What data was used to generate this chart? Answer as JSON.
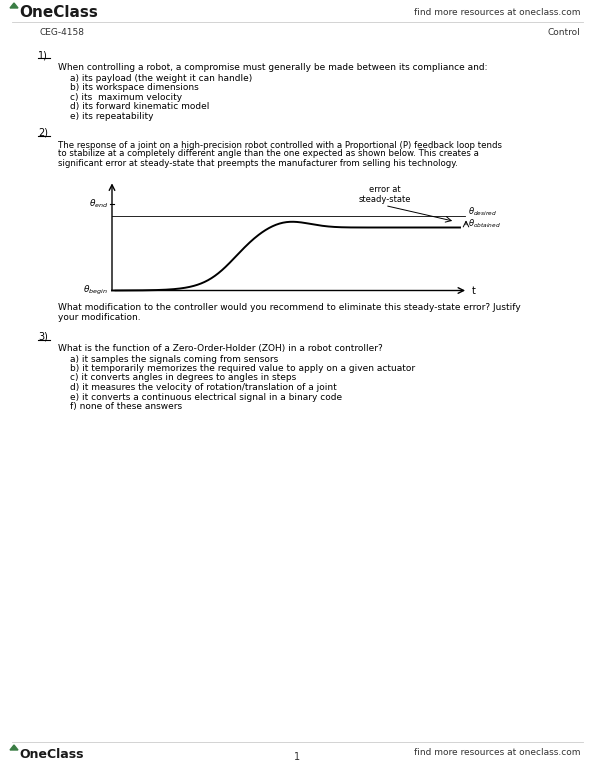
{
  "header_left": "OneClass",
  "header_right": "find more resources at oneclass.com",
  "subheader_left": "CEG-4158",
  "subheader_right": "Control",
  "q1_number": "1)",
  "q1_text": "When controlling a robot, a compromise must generally be made between its compliance and:",
  "q1_options": [
    "a) its payload (the weight it can handle)",
    "b) its workspace dimensions",
    "c) its  maximum velocity",
    "d) its forward kinematic model",
    "e) its repeatability"
  ],
  "q2_number": "2)",
  "q2_lines": [
    "The response of a joint on a high-precision robot controlled with a Proportional (P) feedback loop tends",
    "to stabilize at a completely different angle than the one expected as shown below. This creates a",
    "significant error at steady-state that preempts the manufacturer from selling his technology."
  ],
  "q2_question_lines": [
    "What modification to the controller would you recommend to eliminate this steady-state error? Justify",
    "your modification."
  ],
  "q3_number": "3)",
  "q3_text": "What is the function of a Zero-Order-Holder (ZOH) in a robot controller?",
  "q3_options": [
    "a) it samples the signals coming from sensors",
    "b) it temporarily memorizes the required value to apply on a given actuator",
    "c) it converts angles in degrees to angles in steps",
    "d) it measures the velocity of rotation/translation of a joint",
    "e) it converts a continuous electrical signal in a binary code",
    "f) none of these answers"
  ],
  "footer_page": "1",
  "footer_left": "OneClass",
  "footer_right": "find more resources at oneclass.com",
  "background_color": "#ffffff",
  "text_color": "#000000",
  "gray_color": "#555555",
  "green_color": "#3a7d44",
  "line_color": "#bbbbbb"
}
